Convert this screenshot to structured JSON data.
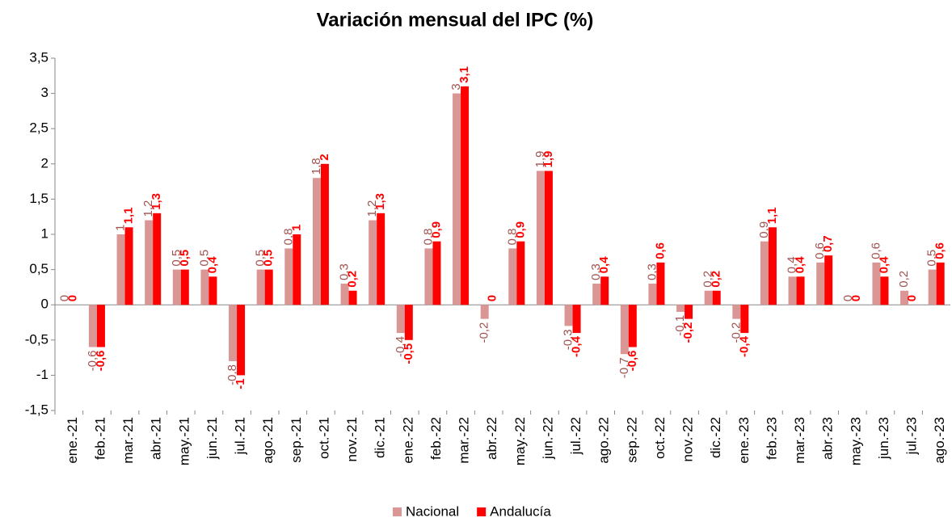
{
  "chart_data": {
    "type": "bar",
    "title": "Variación mensual del IPC (%)",
    "categories": [
      "ene.-21",
      "feb.-21",
      "mar.-21",
      "abr.-21",
      "may.-21",
      "jun.-21",
      "jul.-21",
      "ago.-21",
      "sep.-21",
      "oct.-21",
      "nov.-21",
      "dic.-21",
      "ene.-22",
      "feb.-22",
      "mar.-22",
      "abr.-22",
      "may.-22",
      "jun.-22",
      "jul.-22",
      "ago.-22",
      "sep.-22",
      "oct.-22",
      "nov.-22",
      "dic.-22",
      "ene.-23",
      "feb.-23",
      "mar.-23",
      "abr.-23",
      "may.-23",
      "jun.-23",
      "jul.-23",
      "ago.-23"
    ],
    "series": [
      {
        "name": "Nacional",
        "color": "#d99694",
        "label_color": "#a0524f",
        "values": [
          0,
          -0.6,
          1,
          1.2,
          0.5,
          0.5,
          -0.8,
          0.5,
          0.8,
          1.8,
          0.3,
          1.2,
          -0.4,
          0.8,
          3,
          -0.2,
          0.8,
          1.9,
          -0.3,
          0.3,
          -0.7,
          0.3,
          -0.1,
          0.2,
          -0.2,
          0.9,
          0.4,
          0.6,
          0,
          0.6,
          0.2,
          0.5
        ],
        "value_labels": [
          "0",
          "-0,6",
          "1",
          "1,2",
          "0,5",
          "0,5",
          "-0,8",
          "0,5",
          "0,8",
          "1,8",
          "0,3",
          "1,2",
          "-0,4",
          "0,8",
          "3",
          "-0,2",
          "0,8",
          "1,9",
          "-0,3",
          "0,3",
          "-0,7",
          "0,3",
          "-0,1",
          "0,2",
          "-0,2",
          "0,9",
          "0,4",
          "0,6",
          "0",
          "0,6",
          "0,2",
          "0,5"
        ]
      },
      {
        "name": "Andalucía",
        "color": "#ff0000",
        "label_color": "#ff0000",
        "values": [
          0,
          -0.6,
          1.1,
          1.3,
          0.5,
          0.4,
          -1,
          0.5,
          1,
          2,
          0.2,
          1.3,
          -0.5,
          0.9,
          3.1,
          0,
          0.9,
          1.9,
          -0.4,
          0.4,
          -0.6,
          0.6,
          -0.2,
          0.2,
          -0.4,
          1.1,
          0.4,
          0.7,
          0,
          0.4,
          0,
          0.6
        ],
        "value_labels": [
          "0",
          "-0,6",
          "1,1",
          "1,3",
          "0,5",
          "0,4",
          "-1",
          "0,5",
          "1",
          "2",
          "0,2",
          "1,3",
          "-0,5",
          "0,9",
          "3,1",
          "0",
          "0,9",
          "1,9",
          "-0,4",
          "0,4",
          "-0,6",
          "0,6",
          "-0,2",
          "0,2",
          "-0,4",
          "1,1",
          "0,4",
          "0,7",
          "0",
          "0,4",
          "0",
          "0,6"
        ]
      }
    ],
    "ylim": [
      -1.5,
      3.5
    ],
    "yticks": [
      {
        "value": -1.5,
        "label": "-1,5"
      },
      -1,
      {
        "value": -0.5,
        "label": "-0,5"
      },
      0,
      {
        "value": 0.5,
        "label": "0,5"
      },
      1,
      {
        "value": 1.5,
        "label": "1,5"
      },
      2,
      {
        "value": 2.5,
        "label": "2,5"
      },
      3,
      {
        "value": 3.5,
        "label": "3,5"
      }
    ],
    "grid": false,
    "legend": "bottom"
  }
}
